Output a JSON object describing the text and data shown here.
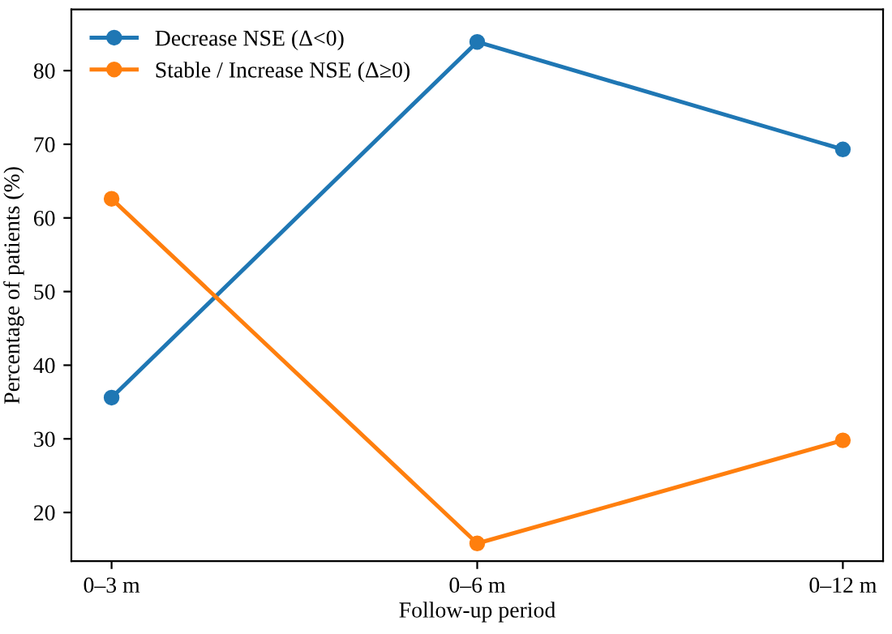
{
  "chart_data": {
    "type": "line",
    "xlabel": "Follow-up period",
    "ylabel": "Percentage of patients (%)",
    "categories": [
      "0–3 m",
      "0–6 m",
      "0–12 m"
    ],
    "series": [
      {
        "name": "Decrease NSE (Δ<0)",
        "color": "#1f77b4",
        "values": [
          35.6,
          83.9,
          69.3
        ]
      },
      {
        "name": "Stable / Increase NSE (Δ≥0)",
        "color": "#ff7f0e",
        "values": [
          62.6,
          15.8,
          29.8
        ]
      }
    ],
    "ylim": [
      13.4,
      88.3
    ],
    "yticks": [
      20,
      30,
      40,
      50,
      60,
      70,
      80
    ],
    "marker": "circle",
    "line_style": "solid",
    "legend": "top left",
    "grid": false
  }
}
